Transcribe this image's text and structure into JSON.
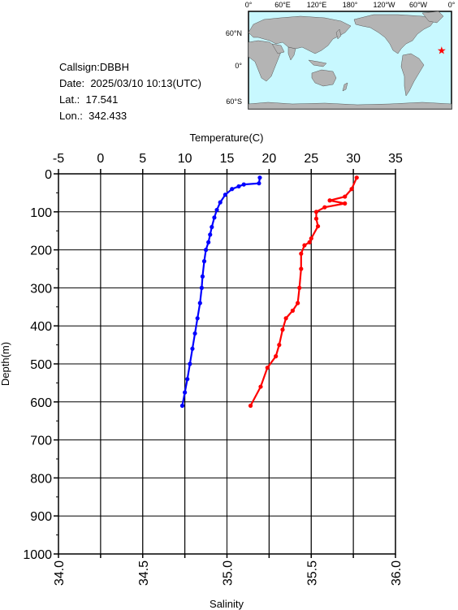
{
  "station": {
    "callsign_label": "Callsign:",
    "callsign": "DBBH",
    "date_label": "Date:",
    "date": "2025/03/10 10:13(UTC)",
    "lat_label": "Lat.:",
    "lat": "17.541",
    "lon_label": "Lon.:",
    "lon": "342.433"
  },
  "map": {
    "top_labels": [
      "0°",
      "60°E",
      "120°E",
      "180°",
      "120°W",
      "60°W",
      "0°"
    ],
    "left_labels": [
      "60°N",
      "0°",
      "60°S"
    ],
    "ocean_color": "#c8f8ff",
    "land_color": "#b4b4b4",
    "marker": "star",
    "marker_color": "#ff0000",
    "marker_position": {
      "lon": 342.433,
      "lat": 17.541
    }
  },
  "chart_data": {
    "type": "line",
    "top_axis": {
      "label": "Temperature(C)",
      "range": [
        -5,
        35
      ],
      "ticks": [
        -5,
        0,
        5,
        10,
        15,
        20,
        25,
        30,
        35
      ]
    },
    "bottom_axis": {
      "label": "Salinity",
      "range": [
        34.0,
        36.0
      ],
      "ticks": [
        "34.0",
        "34.5",
        "35.0",
        "35.5",
        "36.0"
      ]
    },
    "y_axis": {
      "label": "Depth(m)",
      "range": [
        0,
        1000
      ],
      "inverted": true,
      "ticks": [
        0,
        100,
        200,
        300,
        400,
        500,
        600,
        700,
        800,
        900,
        1000
      ]
    },
    "grid": true,
    "series": [
      {
        "axis": "temperature",
        "color": "#0000ff",
        "points": [
          [
            18.9,
            10
          ],
          [
            18.8,
            25
          ],
          [
            17.0,
            28
          ],
          [
            16.4,
            33
          ],
          [
            15.6,
            40
          ],
          [
            14.8,
            55
          ],
          [
            14.2,
            75
          ],
          [
            13.8,
            95
          ],
          [
            13.5,
            115
          ],
          [
            13.2,
            140
          ],
          [
            13.0,
            160
          ],
          [
            12.8,
            180
          ],
          [
            12.5,
            200
          ],
          [
            12.3,
            230
          ],
          [
            12.1,
            270
          ],
          [
            12.0,
            300
          ],
          [
            11.8,
            340
          ],
          [
            11.5,
            380
          ],
          [
            11.2,
            420
          ],
          [
            10.9,
            460
          ],
          [
            10.6,
            500
          ],
          [
            10.3,
            540
          ],
          [
            10.0,
            575
          ],
          [
            9.7,
            610
          ]
        ]
      },
      {
        "axis": "salinity",
        "color": "#ff0000",
        "points": [
          [
            35.77,
            10
          ],
          [
            35.74,
            40
          ],
          [
            35.7,
            60
          ],
          [
            35.61,
            70
          ],
          [
            35.7,
            78
          ],
          [
            35.58,
            88
          ],
          [
            35.53,
            100
          ],
          [
            35.53,
            118
          ],
          [
            35.54,
            138
          ],
          [
            35.5,
            170
          ],
          [
            35.49,
            180
          ],
          [
            35.46,
            188
          ],
          [
            35.44,
            210
          ],
          [
            35.44,
            250
          ],
          [
            35.43,
            300
          ],
          [
            35.42,
            340
          ],
          [
            35.39,
            360
          ],
          [
            35.35,
            380
          ],
          [
            35.33,
            410
          ],
          [
            35.31,
            450
          ],
          [
            35.29,
            480
          ],
          [
            35.24,
            510
          ],
          [
            35.2,
            560
          ],
          [
            35.14,
            610
          ]
        ]
      }
    ]
  }
}
